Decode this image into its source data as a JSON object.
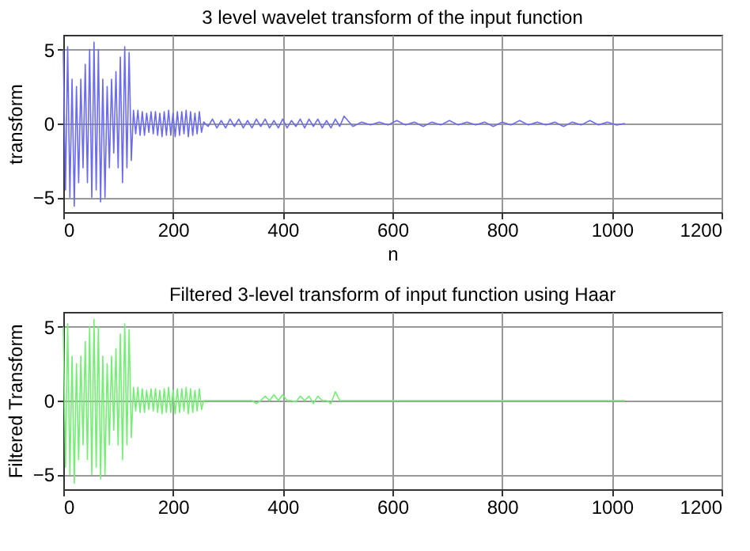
{
  "chart_data": [
    {
      "type": "line",
      "title": "3 level wavelet transform of the input function",
      "xlabel": "n",
      "ylabel": "transform",
      "xlim": [
        0,
        1200
      ],
      "xticks": [
        0,
        200,
        400,
        600,
        800,
        1000,
        1200
      ],
      "ylim": [
        -6,
        6
      ],
      "yticks": [
        -5,
        0,
        5
      ],
      "grid": true,
      "x": [
        0,
        4,
        8,
        12,
        16,
        20,
        24,
        28,
        32,
        36,
        40,
        44,
        48,
        52,
        56,
        60,
        64,
        68,
        72,
        76,
        80,
        84,
        88,
        92,
        96,
        100,
        104,
        108,
        112,
        116,
        120,
        124,
        128,
        132,
        136,
        140,
        144,
        148,
        152,
        156,
        160,
        164,
        168,
        172,
        176,
        180,
        184,
        188,
        192,
        196,
        200,
        204,
        208,
        212,
        216,
        220,
        224,
        228,
        232,
        236,
        240,
        244,
        248,
        252,
        256,
        264,
        272,
        280,
        288,
        296,
        304,
        312,
        320,
        328,
        336,
        344,
        352,
        360,
        368,
        376,
        384,
        392,
        400,
        408,
        416,
        424,
        432,
        440,
        448,
        456,
        464,
        472,
        480,
        488,
        496,
        504,
        512,
        528,
        544,
        560,
        576,
        592,
        608,
        624,
        640,
        656,
        672,
        688,
        704,
        720,
        736,
        752,
        768,
        784,
        800,
        816,
        832,
        848,
        864,
        880,
        896,
        912,
        928,
        944,
        960,
        976,
        992,
        1008,
        1024
      ],
      "series": [
        {
          "color": "#6b6bf0",
          "values": [
            5,
            -4.5,
            5.2,
            -5,
            3,
            -5.6,
            2.5,
            -4,
            3,
            -3,
            4,
            -4,
            5,
            -5,
            5.5,
            -4.5,
            5,
            -5.3,
            3,
            -5,
            2.5,
            -3,
            3,
            -2,
            3.5,
            -3,
            4.5,
            -4,
            5.2,
            -3,
            4.8,
            -2.5,
            0.9,
            -0.7,
            0.9,
            -0.8,
            0.8,
            -0.8,
            0.7,
            -0.6,
            0.8,
            -0.7,
            0.8,
            -0.8,
            0.7,
            -0.9,
            0.8,
            -0.8,
            0.9,
            -0.8,
            0.7,
            -0.9,
            0.8,
            -0.8,
            0.8,
            -0.7,
            0.9,
            -0.9,
            0.8,
            -0.8,
            0.7,
            -0.7,
            0.8,
            -0.6,
            0.1,
            -0.2,
            0.3,
            -0.3,
            0.2,
            -0.3,
            0.3,
            -0.2,
            0.3,
            -0.3,
            0.2,
            -0.3,
            0.3,
            -0.2,
            0.3,
            -0.3,
            0.2,
            -0.3,
            0.3,
            -0.3,
            0.2,
            -0.2,
            0.3,
            -0.3,
            0.3,
            -0.2,
            0.3,
            -0.3,
            0.2,
            -0.3,
            0.3,
            -0.2,
            0.5,
            -0.2,
            0.1,
            -0.1,
            0.1,
            -0.1,
            0.2,
            -0.1,
            0.1,
            -0.2,
            0.1,
            -0.1,
            0.2,
            -0.1,
            0.1,
            -0.1,
            0.1,
            -0.2,
            0.1,
            -0.1,
            0.2,
            -0.1,
            0.1,
            -0.1,
            0.1,
            -0.2,
            0.1,
            -0.1,
            0.2,
            -0.1,
            0.1,
            -0.1,
            0
          ]
        }
      ]
    },
    {
      "type": "line",
      "title": "Filtered 3-level transform of input function using Haar",
      "ylabel": "Filtered Transform",
      "xlim": [
        0,
        1200
      ],
      "xticks": [
        0,
        200,
        400,
        600,
        800,
        1000,
        1200
      ],
      "ylim": [
        -6,
        6
      ],
      "yticks": [
        -5,
        0,
        5
      ],
      "grid": true,
      "x": [
        0,
        4,
        8,
        12,
        16,
        20,
        24,
        28,
        32,
        36,
        40,
        44,
        48,
        52,
        56,
        60,
        64,
        68,
        72,
        76,
        80,
        84,
        88,
        92,
        96,
        100,
        104,
        108,
        112,
        116,
        120,
        124,
        128,
        132,
        136,
        140,
        144,
        148,
        152,
        156,
        160,
        164,
        168,
        172,
        176,
        180,
        184,
        188,
        192,
        196,
        200,
        204,
        208,
        212,
        216,
        220,
        224,
        228,
        232,
        236,
        240,
        244,
        248,
        252,
        256,
        264,
        272,
        280,
        288,
        296,
        304,
        312,
        320,
        328,
        336,
        344,
        352,
        360,
        368,
        376,
        384,
        392,
        400,
        408,
        416,
        424,
        432,
        440,
        448,
        456,
        464,
        472,
        480,
        488,
        496,
        504,
        512,
        528,
        544,
        560,
        576,
        592,
        608,
        624,
        640,
        656,
        672,
        688,
        704,
        720,
        736,
        752,
        768,
        784,
        800,
        816,
        832,
        848,
        864,
        880,
        896,
        912,
        928,
        944,
        960,
        976,
        992,
        1008,
        1024
      ],
      "series": [
        {
          "color": "#74ee74",
          "values": [
            5,
            -4.5,
            5.2,
            -5,
            3,
            -5.6,
            2.5,
            -4,
            3,
            -3,
            4,
            -4,
            5,
            -5,
            5.5,
            -4.5,
            5,
            -5.3,
            3,
            -5,
            2.5,
            -3,
            3,
            -2,
            3.5,
            -3,
            4.5,
            -4,
            5.2,
            -3,
            4.8,
            -2.5,
            0.9,
            -0.7,
            0.9,
            -0.8,
            0.8,
            -0.8,
            0.7,
            -0.6,
            0.8,
            -0.7,
            0.8,
            -0.8,
            0.7,
            -0.9,
            0.8,
            -0.8,
            0.9,
            -0.8,
            0.7,
            -0.9,
            0.8,
            -0.8,
            0.8,
            -0.7,
            0.9,
            -0.9,
            0.8,
            -0.8,
            0.7,
            -0.7,
            0.8,
            -0.6,
            0,
            0,
            0,
            0,
            0,
            0,
            0,
            0,
            0,
            0,
            0,
            0,
            -0.2,
            0,
            0.3,
            0,
            0.4,
            0,
            0.4,
            0,
            0,
            -0.1,
            0.3,
            0,
            0.3,
            -0.2,
            0.3,
            0,
            0,
            -0.2,
            0.6,
            0,
            0,
            0,
            0,
            0,
            0,
            0,
            0,
            0,
            0,
            0,
            0,
            0,
            0,
            0,
            0,
            0,
            0,
            0,
            0,
            0,
            0,
            0,
            0,
            0,
            0,
            0,
            0,
            0,
            0,
            0,
            0,
            0,
            0
          ]
        }
      ]
    }
  ]
}
